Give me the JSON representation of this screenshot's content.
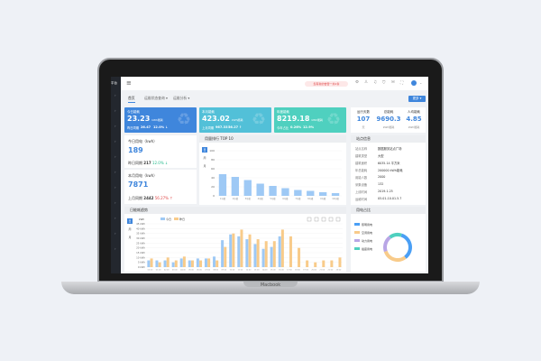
{
  "laptop": {
    "brand": "Macbook"
  },
  "sidebar": {
    "label": "平台",
    "items": [
      "›",
      "›",
      "›",
      "›",
      "›",
      "›",
      "›",
      "›",
      "›",
      "›",
      "›"
    ]
  },
  "header": {
    "alert": "您有新的告警一共2条",
    "icons": [
      "settings-icon",
      "user-icon",
      "bell-icon",
      "shield-icon",
      "message-icon",
      "fullscreen-icon"
    ]
  },
  "tabs": [
    {
      "label": "首页",
      "active": true
    },
    {
      "label": "运维状态查询 ▾"
    },
    {
      "label": "运维分析 ▾"
    }
  ],
  "more_button": "更多 ▾",
  "kpis": [
    {
      "title": "今日能耗",
      "value": "23.23",
      "unit": "kWh能耗",
      "sub_label": "昨日同期",
      "sub_value": "26.47",
      "delta": "12.0% ↓",
      "color": "#3f86dc"
    },
    {
      "title": "本月能耗",
      "value": "423.02",
      "unit": "kWh能耗",
      "sub_label": "上月同期",
      "sub_value": "967.33",
      "delta": "56.27 ↑",
      "color": "#52c0d8"
    },
    {
      "title": "年度能耗",
      "value": "8219.18",
      "unit": "kWh能耗",
      "sub_label": "今年占比",
      "sub_value": "0.26%",
      "delta": "12.9%",
      "color": "#4fd0bf"
    }
  ],
  "stats": [
    {
      "label": "运行天数",
      "value": "107",
      "unit": "天"
    },
    {
      "label": "总能耗",
      "value": "9690.3",
      "unit": "kWh能耗"
    },
    {
      "label": "人均能耗",
      "value": "4.85",
      "unit": "kWh能耗"
    }
  ],
  "today": {
    "title": "今日用电（kwh）",
    "value": "189",
    "cmp_label": "昨日同期",
    "cmp_value": "217",
    "delta": "12.0% ↓"
  },
  "month": {
    "title": "本月用电（kwh）",
    "value": "7871",
    "cmp_label": "上月同期",
    "cmp_value": "2442",
    "delta": "56.27% ↑"
  },
  "ranking": {
    "title": "用量排行 TOP 10",
    "buttons": [
      "日",
      "周",
      "月"
    ]
  },
  "site": {
    "title": "站点信息",
    "rows": [
      [
        "站点名称",
        "数据服务站点广场"
      ],
      [
        "建筑类型",
        "大型"
      ],
      [
        "建筑面积",
        "6035.14 平方米"
      ],
      [
        "年总能耗",
        "200000 kWh能耗"
      ],
      [
        "用能人数",
        "2000"
      ],
      [
        "采集设备",
        "132"
      ],
      [
        "上线时间",
        "2019.1.25"
      ],
      [
        "运维时间",
        "05.01-10.01.5.7"
      ]
    ]
  },
  "trend": {
    "title": "日能耗趋势",
    "buttons": [
      "日",
      "周",
      "月"
    ],
    "unit": "kWh",
    "tools": [
      "数据视图",
      "折线",
      "柱状",
      "还原",
      "下载"
    ]
  },
  "share": {
    "title": "用电占比",
    "legend": [
      "照明用电",
      "空调用电",
      "动力用电",
      "插座用电"
    ]
  },
  "chart_data": [
    {
      "type": "bar",
      "title": "用量排行 TOP 10",
      "categories": [
        "1号楼",
        "2号楼",
        "3号楼",
        "4号楼",
        "5号楼",
        "6号楼",
        "7号楼",
        "8号楼",
        "9号楼",
        "10号楼"
      ],
      "values": [
        48,
        42,
        35,
        27,
        22,
        17,
        13,
        11,
        8,
        6
      ],
      "ylim": [
        0,
        100
      ],
      "yticks": [
        0,
        20,
        40,
        60,
        80,
        100
      ],
      "color": "#9ec9f5"
    },
    {
      "type": "bar",
      "title": "日能耗趋势",
      "ylabel": "kWh",
      "categories": [
        "00:00",
        "01:00",
        "02:00",
        "03:00",
        "04:00",
        "05:00",
        "06:00",
        "07:00",
        "08:00",
        "09:00",
        "10:00",
        "11:00",
        "12:00",
        "13:00",
        "14:00",
        "15:00",
        "16:00",
        "17:00",
        "18:00",
        "19:00",
        "20:00",
        "21:00",
        "22:00",
        "23:00"
      ],
      "series": [
        {
          "name": "今日",
          "color": "#9ec9f5",
          "values": [
            7,
            7,
            7,
            5,
            9,
            7,
            9,
            9,
            11,
            28,
            34,
            32,
            29,
            24,
            19,
            21,
            32,
            null,
            null,
            null,
            null,
            null,
            null,
            null
          ]
        },
        {
          "name": "昨日",
          "color": "#f8cb8a",
          "values": [
            9,
            5,
            10,
            7,
            11,
            7,
            7,
            9,
            7,
            21,
            35,
            39,
            34,
            29,
            27,
            27,
            39,
            32,
            20,
            7,
            5,
            7,
            7,
            10
          ]
        }
      ],
      "ylim": [
        0,
        45
      ],
      "yticks": [
        "0 kWh",
        "5 kWh",
        "10 kWh",
        "15 kWh",
        "20 kWh",
        "25 kWh",
        "30 kWh",
        "35 kWh",
        "40 kWh",
        "45 kWh"
      ],
      "legend": "top-left"
    },
    {
      "type": "pie",
      "title": "用电占比",
      "categories": [
        "照明用电",
        "空调用电",
        "动力用电",
        "插座用电"
      ],
      "values": [
        35,
        30,
        20,
        15
      ],
      "colors": [
        "#4a9ff5",
        "#f8cb8a",
        "#b9a6e6",
        "#4fd0bf"
      ]
    }
  ]
}
